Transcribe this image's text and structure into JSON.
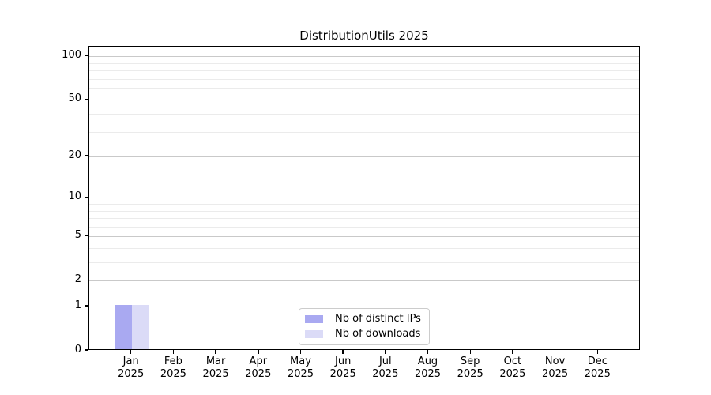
{
  "chart_data": {
    "type": "bar",
    "title": "DistributionUtils 2025",
    "categories": [
      "Jan",
      "Feb",
      "Mar",
      "Apr",
      "May",
      "Jun",
      "Jul",
      "Aug",
      "Sep",
      "Oct",
      "Nov",
      "Dec"
    ],
    "year_label": "2025",
    "series": [
      {
        "name": "Nb of distinct IPs",
        "color": "#a9a9f1",
        "values": [
          1,
          0,
          0,
          0,
          0,
          0,
          0,
          0,
          0,
          0,
          0,
          0
        ]
      },
      {
        "name": "Nb of downloads",
        "color": "#dbdbf7",
        "values": [
          1,
          0,
          0,
          0,
          0,
          0,
          0,
          0,
          0,
          0,
          0,
          0
        ]
      }
    ],
    "xlabel": "",
    "ylabel": "",
    "yscale": "log1p",
    "ylim": [
      0,
      116.5
    ],
    "xlim_units": [
      -1,
      12
    ],
    "bar_width_ratio": 0.4,
    "y_major_ticks": [
      100,
      50,
      20,
      10,
      5,
      2,
      1,
      0
    ],
    "y_minor_ticks": [
      90,
      80,
      70,
      60,
      40,
      30,
      9,
      8,
      7,
      6,
      4,
      3
    ],
    "grid": {
      "on": true,
      "major_color": "#c9c9c9",
      "minor_color": "#ebebeb"
    },
    "legend": {
      "position": "lower-center-inside"
    },
    "colors": {
      "axis": "#000000",
      "background": "#ffffff",
      "text": "#000000"
    }
  }
}
